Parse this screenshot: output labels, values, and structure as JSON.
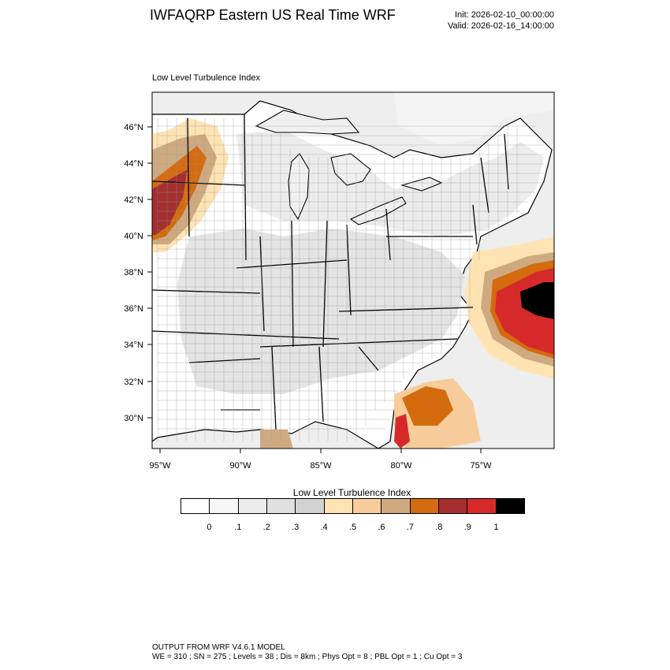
{
  "title": "IWFAQRP Eastern US Real Time WRF",
  "init": "Init: 2026-02-10_00:00:00",
  "valid": "Valid: 2026-02-16_14:00:00",
  "panel_title": "Low Level Turbulence Index",
  "map": {
    "lat_labels": [
      "46°N",
      "44°N",
      "42°N",
      "40°N",
      "38°N",
      "36°N",
      "34°N",
      "32°N",
      "30°N"
    ],
    "lon_labels": [
      "95°W",
      "90°W",
      "85°W",
      "80°W",
      "75°W"
    ],
    "land_color": "#ffffff",
    "water_color": "#f0f0f0",
    "border_color": "#000000"
  },
  "colorbar": {
    "title": "Low Level Turbulence Index",
    "colors": [
      "#ffffff",
      "#f7f7f7",
      "#ececec",
      "#e0e0e0",
      "#d2d2d2",
      "#ffe3b3",
      "#f8cc9a",
      "#cfaa80",
      "#d46b0e",
      "#a32f2f",
      "#d62a2a",
      "#000000"
    ],
    "labels": [
      "0",
      ".1",
      ".2",
      ".3",
      ".4",
      ".5",
      ".6",
      ".7",
      ".8",
      ".9",
      "1"
    ]
  },
  "footer": {
    "line1": "OUTPUT FROM WRF V4.6.1 MODEL",
    "line2": "WE = 310 ; SN = 275 ; Levels = 38 ; Dis = 8km ; Phys Opt = 8 ; PBL Opt = 1 ; Cu Opt = 3"
  }
}
